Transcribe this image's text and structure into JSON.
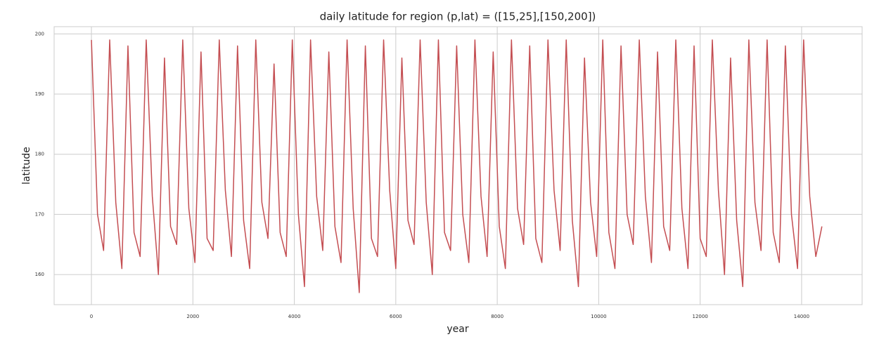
{
  "chart_data": {
    "type": "line",
    "title": "daily latitude for region (p,lat) = ([15,25],[150,200])",
    "x_label": "year",
    "y_label": "latitude",
    "color": "#c44e52",
    "grid": true,
    "xlim": [
      -735,
      15193
    ],
    "ylim": [
      155,
      201.2
    ],
    "xticks": [
      0,
      2000,
      4000,
      6000,
      8000,
      10000,
      12000,
      14000
    ],
    "yticks": [
      160,
      170,
      180,
      190,
      200
    ],
    "x": [
      0,
      120,
      240,
      360,
      480,
      600,
      720,
      840,
      960,
      1080,
      1200,
      1320,
      1440,
      1560,
      1680,
      1800,
      1920,
      2040,
      2160,
      2280,
      2400,
      2520,
      2640,
      2760,
      2880,
      3000,
      3120,
      3240,
      3360,
      3480,
      3600,
      3720,
      3840,
      3960,
      4080,
      4200,
      4320,
      4440,
      4560,
      4680,
      4800,
      4920,
      5040,
      5160,
      5280,
      5400,
      5520,
      5640,
      5760,
      5880,
      6000,
      6120,
      6240,
      6360,
      6480,
      6600,
      6720,
      6840,
      6960,
      7080,
      7200,
      7320,
      7440,
      7560,
      7680,
      7800,
      7920,
      8040,
      8160,
      8280,
      8400,
      8520,
      8640,
      8760,
      8880,
      9000,
      9120,
      9240,
      9360,
      9480,
      9600,
      9720,
      9840,
      9960,
      10080,
      10200,
      10320,
      10440,
      10560,
      10680,
      10800,
      10920,
      11040,
      11160,
      11280,
      11400,
      11520,
      11640,
      11760,
      11880,
      12000,
      12120,
      12240,
      12360,
      12480,
      12600,
      12720,
      12840,
      12960,
      13080,
      13200,
      13320,
      13440,
      13560,
      13680,
      13800,
      13920,
      14040,
      14160,
      14280,
      14400
    ],
    "values": [
      199,
      170,
      164,
      199,
      172,
      161,
      198,
      167,
      163,
      199,
      173,
      160,
      196,
      168,
      165,
      199,
      171,
      162,
      197,
      166,
      164,
      199,
      174,
      163,
      198,
      169,
      161,
      199,
      172,
      166,
      195,
      167,
      163,
      199,
      170,
      158,
      199,
      173,
      164,
      197,
      168,
      162,
      199,
      171,
      157,
      198,
      166,
      163,
      199,
      174,
      161,
      196,
      169,
      165,
      199,
      172,
      160,
      199,
      167,
      164,
      198,
      170,
      162,
      199,
      173,
      163,
      197,
      168,
      161,
      199,
      171,
      165,
      198,
      166,
      162,
      199,
      174,
      164,
      199,
      169,
      158,
      196,
      172,
      163,
      199,
      167,
      161,
      198,
      170,
      165,
      199,
      173,
      162,
      197,
      168,
      164,
      199,
      171,
      161,
      198,
      166,
      163,
      199,
      174,
      160,
      196,
      169,
      158,
      199,
      172,
      164,
      199,
      167,
      162,
      198,
      170,
      161,
      199,
      173,
      163,
      168
    ]
  }
}
